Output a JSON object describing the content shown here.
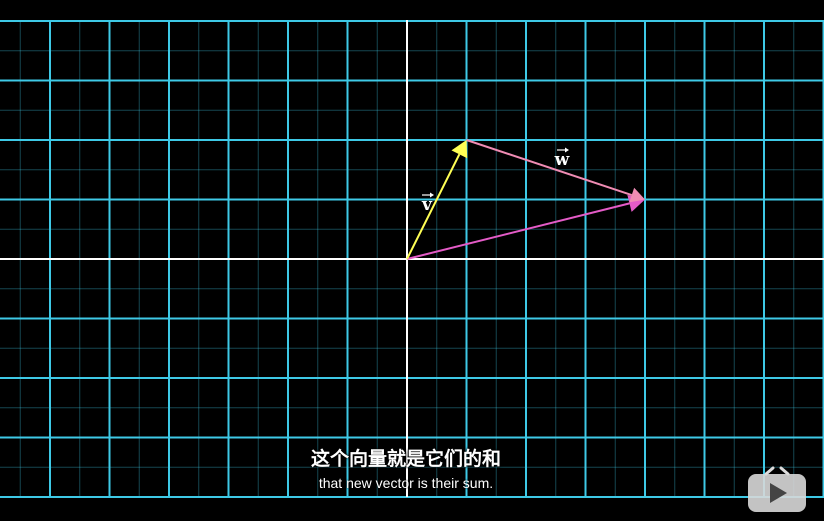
{
  "subtitle": {
    "chinese": "这个向量就是它们的和",
    "english": "that new vector is their sum."
  },
  "vectors": {
    "v": {
      "label": "v",
      "components": [
        1,
        2
      ],
      "color": "#ffff55"
    },
    "w": {
      "label": "w",
      "components": [
        3,
        -1
      ],
      "color": "#f08cb4"
    },
    "sum": {
      "components": [
        4,
        1
      ],
      "color": "#e45bc7"
    }
  },
  "colors": {
    "grid": "#3ec9e6",
    "axes": "#ffffff",
    "background": "#000000"
  },
  "icons": {
    "watermark": "tv-play-icon"
  }
}
